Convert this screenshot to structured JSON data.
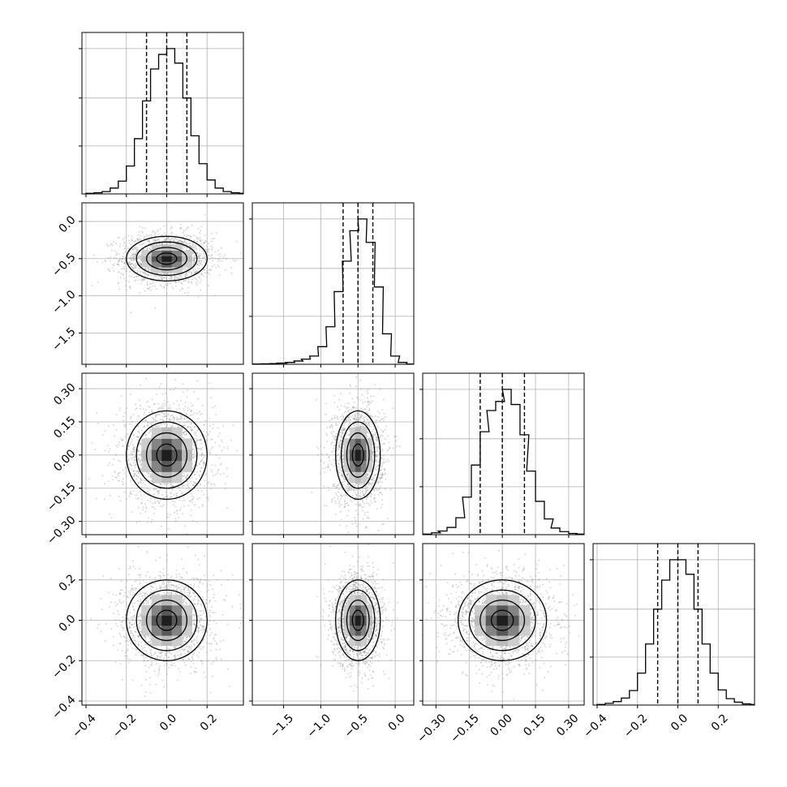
{
  "chart_data": {
    "type": "scatter",
    "subtype": "corner_plot",
    "grid": true,
    "n_params": 4,
    "params": [
      {
        "mean": 0.0,
        "sd": 0.1,
        "range": [
          -0.42,
          0.38
        ],
        "quantiles": [
          -0.1,
          0.0,
          0.1
        ],
        "ticks": [
          -0.4,
          -0.2,
          0.0,
          0.2
        ],
        "tick_labels": [
          "−0.4",
          "−0.2",
          "0.0",
          "0.2"
        ],
        "hist_bins": [
          -0.4,
          -0.36,
          -0.32,
          -0.28,
          -0.24,
          -0.2,
          -0.16,
          -0.12,
          -0.08,
          -0.04,
          0.0,
          0.04,
          0.08,
          0.12,
          0.16,
          0.2,
          0.24,
          0.28,
          0.32,
          0.36
        ],
        "hist_counts": [
          1,
          2,
          4,
          10,
          22,
          48,
          95,
          160,
          215,
          240,
          250,
          225,
          165,
          100,
          52,
          24,
          10,
          4,
          2,
          1
        ]
      },
      {
        "mean": -0.5,
        "sd": 0.15,
        "range": [
          -1.92,
          0.25
        ],
        "quantiles": [
          -0.7,
          -0.5,
          -0.3
        ],
        "ticks": [
          -1.5,
          -1.0,
          -0.5,
          0.0
        ],
        "tick_labels": [
          "−1.5",
          "−1.0",
          "−0.5",
          "0.0"
        ],
        "hist_bins": [
          -1.92,
          -1.8,
          -1.69,
          -1.58,
          -1.47,
          -1.36,
          -1.26,
          -1.15,
          -1.04,
          -0.93,
          -0.82,
          -0.71,
          -0.61,
          -0.5,
          -0.39,
          -0.28,
          -0.17,
          -0.06,
          0.04,
          0.15
        ],
        "hist_counts": [
          1,
          2,
          3,
          5,
          8,
          14,
          22,
          35,
          75,
          160,
          310,
          440,
          570,
          620,
          520,
          330,
          130,
          35,
          8,
          1
        ]
      },
      {
        "mean": 0.0,
        "sd": 0.1,
        "range": [
          -0.36,
          0.37
        ],
        "quantiles": [
          -0.1,
          0.0,
          0.1
        ],
        "ticks": [
          -0.3,
          -0.15,
          0.0,
          0.15,
          0.3
        ],
        "tick_labels": [
          "−0.30",
          "−0.15",
          "0.00",
          "0.15",
          "0.30"
        ],
        "hist_bins": [
          -0.36,
          -0.32,
          -0.29,
          -0.25,
          -0.21,
          -0.18,
          -0.14,
          -0.1,
          -0.07,
          -0.03,
          0.0,
          0.04,
          0.08,
          0.11,
          0.15,
          0.19,
          0.22,
          0.26,
          0.3,
          0.33
        ],
        "hist_counts": [
          1,
          3,
          6,
          12,
          28,
          62,
          115,
          170,
          205,
          220,
          240,
          215,
          165,
          105,
          55,
          26,
          11,
          5,
          2,
          1
        ]
      },
      {
        "mean": 0.0,
        "sd": 0.1,
        "range": [
          -0.42,
          0.38
        ],
        "quantiles": [
          -0.1,
          0.0,
          0.1
        ],
        "ticks": [
          -0.4,
          -0.2,
          0.0,
          0.2
        ],
        "tick_labels": [
          "−0.4",
          "−0.2",
          "0.0",
          "0.2"
        ],
        "hist_bins": [
          -0.4,
          -0.36,
          -0.32,
          -0.28,
          -0.24,
          -0.2,
          -0.16,
          -0.12,
          -0.08,
          -0.04,
          0.0,
          0.04,
          0.08,
          0.12,
          0.16,
          0.2,
          0.24,
          0.28,
          0.32,
          0.36
        ],
        "hist_counts": [
          1,
          3,
          6,
          12,
          25,
          55,
          105,
          165,
          215,
          250,
          250,
          225,
          165,
          105,
          55,
          26,
          11,
          5,
          2,
          1
        ]
      }
    ],
    "marginal_ytick_fractions": [
      0.33,
      0.66,
      1.0
    ],
    "contour_levels_sigma": [
      0.5,
      1.0,
      1.5,
      2.0
    ]
  }
}
